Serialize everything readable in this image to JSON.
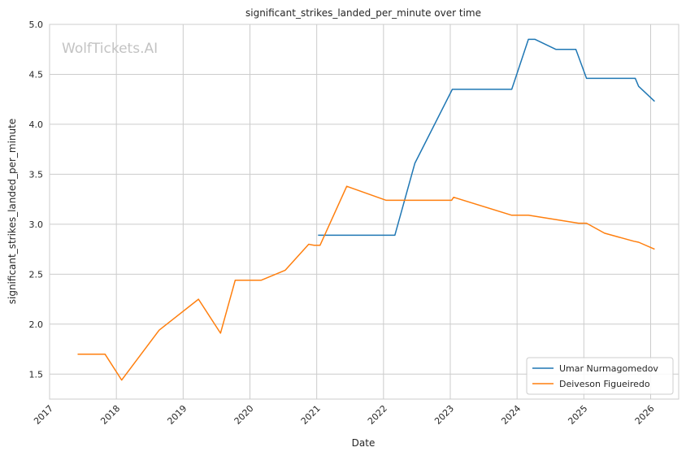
{
  "chart_data": {
    "type": "line",
    "title": "significant_strikes_landed_per_minute over time",
    "xlabel": "Date",
    "ylabel": "significant_strikes_landed_per_minute",
    "watermark": "WolfTickets.AI",
    "xlim": [
      2017.0,
      2026.42
    ],
    "ylim": [
      1.25,
      5.0
    ],
    "x_ticks": [
      "2017",
      "2018",
      "2019",
      "2020",
      "2021",
      "2022",
      "2023",
      "2024",
      "2025",
      "2026"
    ],
    "y_ticks": [
      "1.5",
      "2.0",
      "2.5",
      "3.0",
      "3.5",
      "4.0",
      "4.5",
      "5.0"
    ],
    "grid": true,
    "legend_position": "lower-right",
    "series": [
      {
        "name": "Umar Nurmagomedov",
        "color": "#1f77b4",
        "x": [
          2021.02,
          2022.17,
          2022.47,
          2023.03,
          2023.92,
          2024.17,
          2024.27,
          2024.58,
          2024.88,
          2025.04,
          2025.77,
          2025.82,
          2026.06
        ],
        "y": [
          2.89,
          2.89,
          3.61,
          4.35,
          4.35,
          4.85,
          4.85,
          4.75,
          4.75,
          4.46,
          4.46,
          4.38,
          4.23
        ]
      },
      {
        "name": "Deiveson Figueiredo",
        "color": "#ff7f0e",
        "x": [
          2017.42,
          2017.83,
          2018.08,
          2018.64,
          2019.23,
          2019.56,
          2019.78,
          2020.17,
          2020.53,
          2020.88,
          2020.96,
          2021.05,
          2021.45,
          2022.04,
          2023.02,
          2023.05,
          2023.92,
          2024.17,
          2024.55,
          2024.92,
          2025.04,
          2025.31,
          2025.75,
          2025.82,
          2026.06
        ],
        "y": [
          1.7,
          1.7,
          1.44,
          1.94,
          2.25,
          1.91,
          2.44,
          2.44,
          2.54,
          2.8,
          2.79,
          2.79,
          3.38,
          3.24,
          3.24,
          3.27,
          3.09,
          3.09,
          3.05,
          3.01,
          3.01,
          2.91,
          2.83,
          2.82,
          2.75
        ]
      }
    ]
  }
}
